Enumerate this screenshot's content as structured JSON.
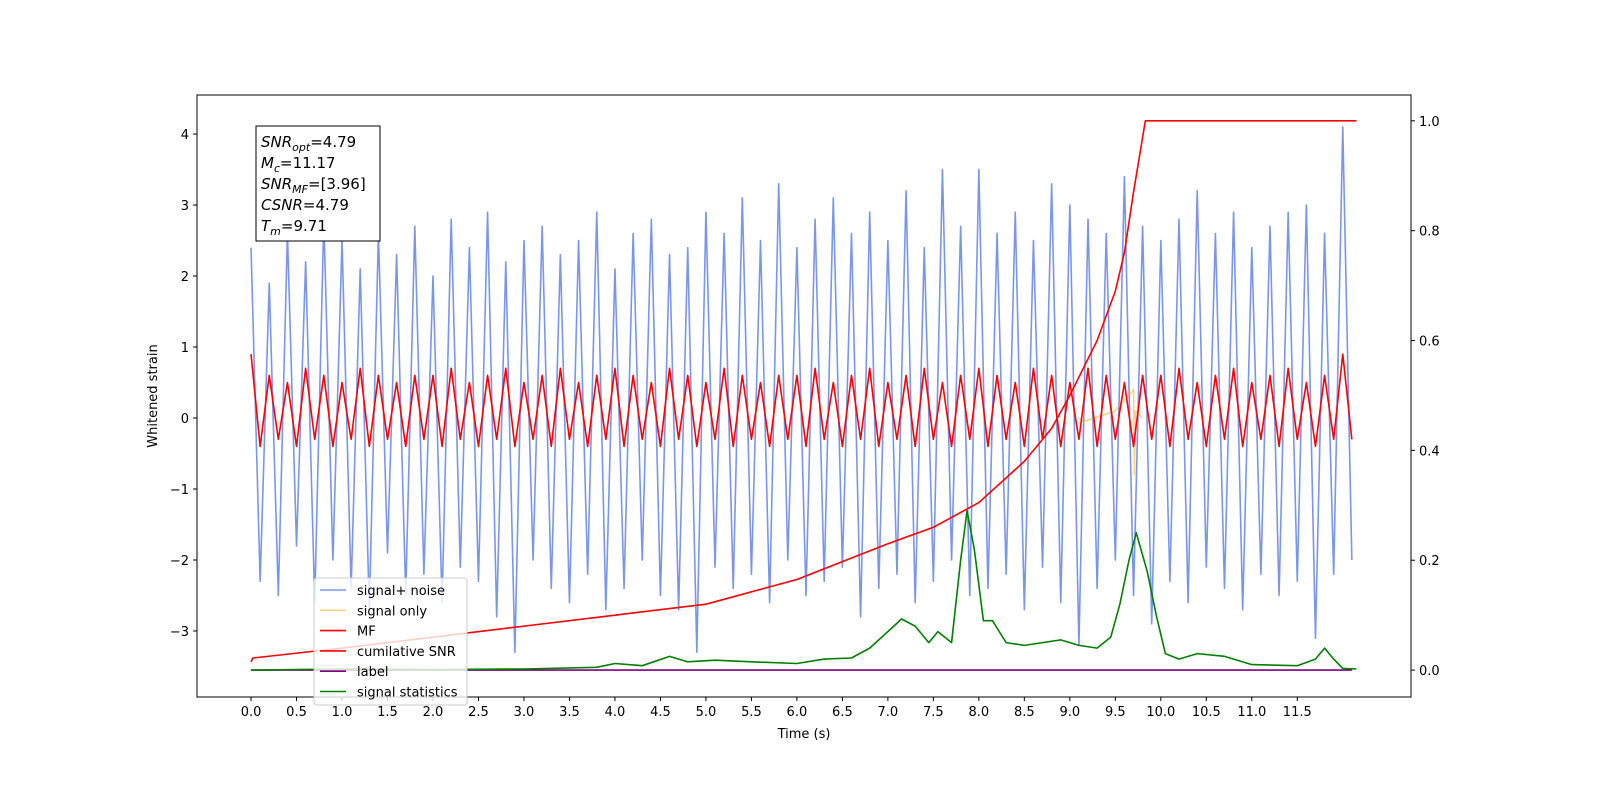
{
  "chart_data": {
    "type": "line",
    "xlabel": "Time (s)",
    "ylabel": "Whitened strain",
    "xlim": [
      -0.594,
      12.75
    ],
    "ylim": [
      -3.93,
      4.55
    ],
    "y2lim": [
      -0.049,
      1.047
    ],
    "xticks": [
      {
        "value": 0,
        "label": "0.0"
      },
      0.5,
      {
        "value": 1,
        "label": "1.0"
      },
      1.5,
      {
        "value": 2,
        "label": "2.0"
      },
      2.5,
      {
        "value": 3,
        "label": "3.0"
      },
      3.5,
      {
        "value": 4,
        "label": "4.0"
      },
      4.5,
      {
        "value": 5,
        "label": "5.0"
      },
      5.5,
      {
        "value": 6,
        "label": "6.0"
      },
      6.5,
      {
        "value": 7,
        "label": "7.0"
      },
      7.5,
      {
        "value": 8,
        "label": "8.0"
      },
      8.5,
      {
        "value": 9,
        "label": "9.0"
      },
      9.5,
      {
        "value": 10,
        "label": "10.0"
      },
      10.5,
      {
        "value": 11,
        "label": "11.0"
      },
      11.5
    ],
    "yticks": [
      {
        "value": -3,
        "label": "−3"
      },
      {
        "value": -2,
        "label": "−2"
      },
      {
        "value": -1,
        "label": "−1"
      },
      0,
      1,
      2,
      3,
      4
    ],
    "y2ticks": [
      {
        "value": 0,
        "label": "0.0"
      },
      0.2,
      0.4,
      0.6,
      0.8,
      {
        "value": 1,
        "label": "1.0"
      }
    ],
    "legend_loc": "lower left",
    "annotation": [
      {
        "var": "SNR",
        "sub": "opt",
        "rest": "=4.79"
      },
      {
        "var": "M",
        "sub": "c",
        "rest": "=11.17"
      },
      {
        "var": "SNR",
        "sub": "MF",
        "rest": "=[3.96]"
      },
      {
        "var": "CSNR",
        "sub": null,
        "rest": "=4.79"
      },
      {
        "var": "T",
        "sub": "m",
        "rest": "=9.71"
      }
    ],
    "x": [
      0,
      0.1,
      0.2,
      0.3,
      0.4,
      0.5,
      0.6,
      0.7,
      0.8,
      0.9,
      1,
      1.1,
      1.2,
      1.3,
      1.4,
      1.5,
      1.6,
      1.7,
      1.8,
      1.9,
      2,
      2.1,
      2.2,
      2.3,
      2.4,
      2.5,
      2.6,
      2.7,
      2.8,
      2.9,
      3,
      3.1,
      3.2,
      3.3,
      3.4,
      3.5,
      3.6,
      3.7,
      3.8,
      3.9,
      4,
      4.1,
      4.2,
      4.3,
      4.4,
      4.5,
      4.6,
      4.7,
      4.8,
      4.9,
      5,
      5.1,
      5.2,
      5.3,
      5.4,
      5.5,
      5.6,
      5.7,
      5.8,
      5.9,
      6,
      6.1,
      6.2,
      6.3,
      6.4,
      6.5,
      6.6,
      6.7,
      6.8,
      6.9,
      7,
      7.1,
      7.2,
      7.3,
      7.4,
      7.5,
      7.6,
      7.7,
      7.8,
      7.9,
      8,
      8.1,
      8.2,
      8.3,
      8.4,
      8.5,
      8.6,
      8.7,
      8.8,
      8.9,
      9,
      9.1,
      9.2,
      9.3,
      9.4,
      9.5,
      9.6,
      9.7,
      9.8,
      9.9,
      10,
      10.1,
      10.2,
      10.3,
      10.4,
      10.5,
      10.6,
      10.7,
      10.8,
      10.9,
      11,
      11.1,
      11.2,
      11.3,
      11.4,
      11.5,
      11.6,
      11.7,
      11.8,
      11.9,
      12,
      12.1
    ],
    "series": [
      {
        "name": "signal+ noise",
        "color": "royalblue",
        "alpha": 0.7,
        "axis": "y",
        "values": [
          2.4,
          -2.3,
          1.9,
          -2.5,
          2.6,
          -1.8,
          2.2,
          -2.6,
          2.8,
          -2.0,
          2.5,
          -2.4,
          2.1,
          -2.7,
          2.6,
          -1.9,
          2.3,
          -2.5,
          2.7,
          -2.2,
          2.0,
          -2.6,
          2.8,
          -2.1,
          2.4,
          -2.3,
          2.9,
          -2.8,
          2.2,
          -3.3,
          2.5,
          -2.0,
          2.7,
          -2.4,
          2.3,
          -2.6,
          2.5,
          -2.2,
          2.9,
          -2.7,
          2.1,
          -2.4,
          2.6,
          -2.0,
          2.8,
          -2.5,
          2.3,
          -2.7,
          2.4,
          -3.3,
          2.9,
          -2.1,
          2.6,
          -2.4,
          3.1,
          -2.2,
          2.5,
          -2.6,
          3.3,
          -2.0,
          2.4,
          -2.5,
          2.8,
          -2.3,
          3.1,
          -2.1,
          2.6,
          -2.8,
          2.9,
          -2.4,
          2.5,
          -2.2,
          3.2,
          -2.6,
          2.4,
          -2.3,
          3.5,
          -2.0,
          2.7,
          -2.5,
          3.5,
          -2.4,
          2.6,
          -2.2,
          2.9,
          -2.7,
          2.5,
          -2.1,
          3.3,
          -2.6,
          3.0,
          -3.2,
          2.8,
          -2.4,
          2.6,
          -2.0,
          3.4,
          -2.5,
          2.7,
          -2.9,
          2.5,
          -2.3,
          2.8,
          -2.6,
          3.2,
          -2.1,
          2.6,
          -2.4,
          2.9,
          -2.7,
          2.4,
          -2.2,
          2.7,
          -2.5,
          2.9,
          -2.3,
          3.0,
          -3.1,
          2.6,
          -2.2,
          4.1,
          -2.0
        ]
      },
      {
        "name": "signal only",
        "color": "orange",
        "alpha": 0.5,
        "axis": "y",
        "x": [
          9.1,
          9.15,
          9.5,
          9.7,
          9.71,
          9.72,
          9.8
        ],
        "values": [
          0,
          -0.05,
          0.1,
          0.4,
          -0.8,
          0.1,
          0
        ]
      },
      {
        "name": "MF",
        "color": "red",
        "alpha": 1,
        "axis": "y",
        "values": [
          0.9,
          -0.4,
          0.6,
          -0.3,
          0.5,
          -0.4,
          0.7,
          -0.3,
          0.6,
          -0.4,
          0.5,
          -0.3,
          0.7,
          -0.4,
          0.6,
          -0.3,
          0.5,
          -0.4,
          0.6,
          -0.3,
          0.6,
          -0.4,
          0.7,
          -0.3,
          0.5,
          -0.4,
          0.6,
          -0.3,
          0.7,
          -0.4,
          0.5,
          -0.3,
          0.6,
          -0.4,
          0.7,
          -0.3,
          0.5,
          -0.4,
          0.6,
          -0.3,
          0.7,
          -0.4,
          0.6,
          -0.3,
          0.5,
          -0.4,
          0.7,
          -0.3,
          0.6,
          -0.4,
          0.5,
          -0.3,
          0.7,
          -0.4,
          0.6,
          -0.3,
          0.5,
          -0.4,
          0.6,
          -0.3,
          0.6,
          -0.4,
          0.7,
          -0.3,
          0.5,
          -0.4,
          0.6,
          -0.3,
          0.7,
          -0.4,
          0.5,
          -0.3,
          0.6,
          -0.4,
          0.7,
          -0.3,
          0.5,
          -0.4,
          0.6,
          -0.3,
          0.7,
          -0.4,
          0.6,
          -0.3,
          0.5,
          -0.4,
          0.7,
          -0.3,
          0.6,
          -0.4,
          0.5,
          -0.3,
          0.7,
          -0.4,
          0.6,
          -0.3,
          0.5,
          -0.4,
          0.6,
          -0.3,
          0.6,
          -0.4,
          0.7,
          -0.3,
          0.5,
          -0.4,
          0.6,
          -0.3,
          0.7,
          -0.4,
          0.5,
          -0.3,
          0.6,
          -0.4,
          0.7,
          -0.3,
          0.5,
          -0.4,
          0.6,
          -0.3,
          0.9,
          -0.3
        ]
      },
      {
        "name": "cumilative SNR",
        "color": "red",
        "alpha": 1,
        "axis": "y2",
        "x": [
          0,
          0.02,
          1,
          2,
          3,
          4,
          5,
          6,
          7,
          7.5,
          8,
          8.5,
          8.8,
          9,
          9.3,
          9.5,
          9.6,
          9.7,
          9.78,
          9.83,
          12.15
        ],
        "values": [
          0.015,
          0.022,
          0.04,
          0.06,
          0.08,
          0.1,
          0.12,
          0.165,
          0.23,
          0.26,
          0.305,
          0.38,
          0.44,
          0.5,
          0.6,
          0.69,
          0.76,
          0.87,
          0.95,
          1.0,
          1.0
        ]
      },
      {
        "name": "label",
        "color": "purple",
        "alpha": 1,
        "axis": "y2",
        "x": [
          0,
          12.1
        ],
        "values": [
          0,
          0
        ]
      },
      {
        "name": "signal statistics",
        "color": "green",
        "alpha": 1,
        "axis": "y2",
        "x": [
          0,
          1,
          2,
          3,
          3.8,
          4.0,
          4.3,
          4.6,
          4.8,
          5.1,
          5.5,
          6,
          6.3,
          6.6,
          6.8,
          7.0,
          7.15,
          7.3,
          7.45,
          7.55,
          7.7,
          7.8,
          7.87,
          7.95,
          8.05,
          8.15,
          8.3,
          8.5,
          8.7,
          8.9,
          9.1,
          9.3,
          9.45,
          9.55,
          9.65,
          9.73,
          9.85,
          9.95,
          10.05,
          10.2,
          10.4,
          10.7,
          11,
          11.5,
          11.7,
          11.8,
          11.9,
          12.0,
          12.15
        ],
        "values": [
          0,
          0.002,
          0.001,
          0.002,
          0.005,
          0.012,
          0.008,
          0.025,
          0.015,
          0.018,
          0.015,
          0.012,
          0.02,
          0.022,
          0.04,
          0.07,
          0.093,
          0.08,
          0.05,
          0.07,
          0.05,
          0.2,
          0.29,
          0.22,
          0.09,
          0.09,
          0.05,
          0.045,
          0.05,
          0.055,
          0.045,
          0.04,
          0.06,
          0.12,
          0.2,
          0.25,
          0.18,
          0.1,
          0.03,
          0.02,
          0.03,
          0.025,
          0.01,
          0.008,
          0.02,
          0.04,
          0.02,
          0.003,
          0.002
        ]
      }
    ]
  }
}
